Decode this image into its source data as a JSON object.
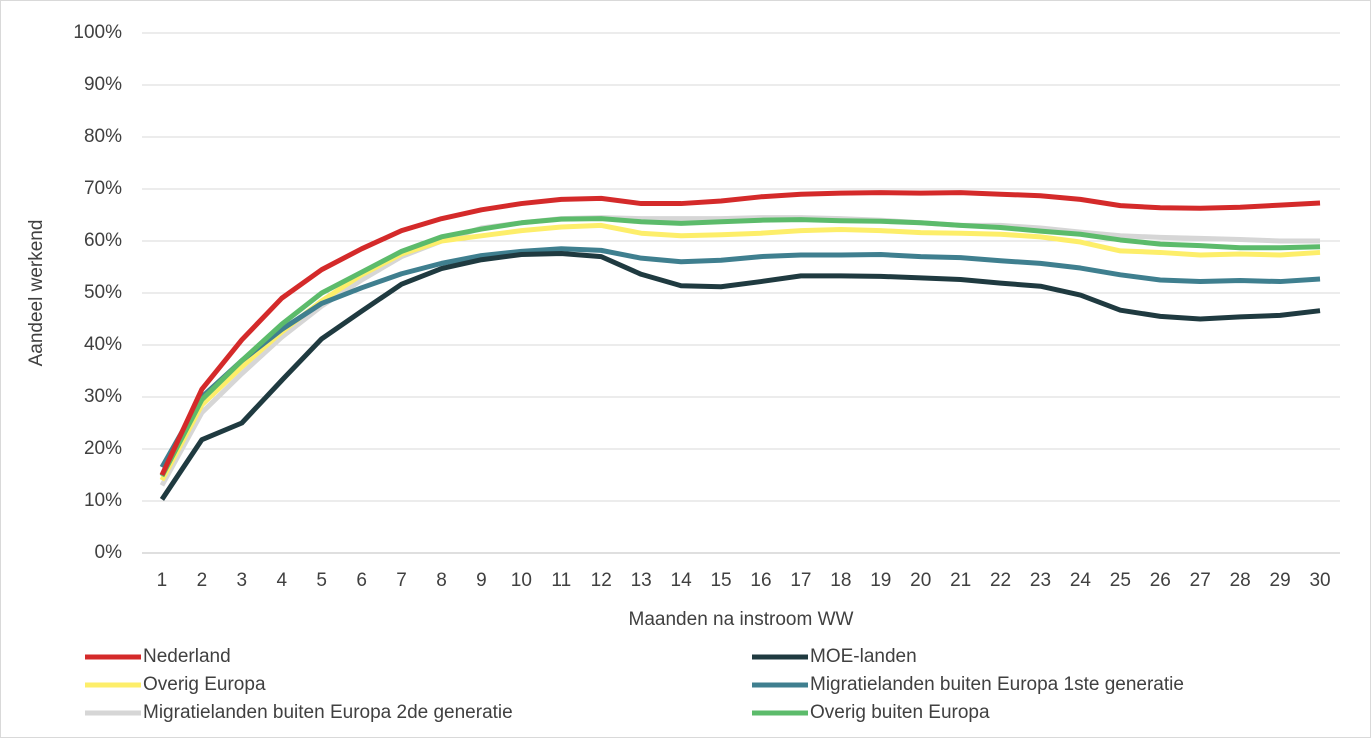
{
  "chart_data": {
    "type": "line",
    "ylabel": "Aandeel werkend",
    "xlabel": "Maanden na instroom WW",
    "categories": [
      "1",
      "2",
      "3",
      "4",
      "5",
      "6",
      "7",
      "8",
      "9",
      "10",
      "11",
      "12",
      "13",
      "14",
      "15",
      "16",
      "17",
      "18",
      "19",
      "20",
      "21",
      "22",
      "23",
      "24",
      "25",
      "26",
      "27",
      "28",
      "29",
      "30"
    ],
    "ylim": [
      0,
      100
    ],
    "yticks": [
      {
        "value": 0,
        "label": "0%"
      },
      {
        "value": 10,
        "label": "10%"
      },
      {
        "value": 20,
        "label": "20%"
      },
      {
        "value": 30,
        "label": "30%"
      },
      {
        "value": 40,
        "label": "40%"
      },
      {
        "value": 50,
        "label": "50%"
      },
      {
        "value": 60,
        "label": "60%"
      },
      {
        "value": 70,
        "label": "70%"
      },
      {
        "value": 80,
        "label": "80%"
      },
      {
        "value": 90,
        "label": "90%"
      },
      {
        "value": 100,
        "label": "100%"
      }
    ],
    "grid": true,
    "legend": "bottom",
    "series": [
      {
        "name": "Nederland",
        "color": "#d42a2a",
        "values": [
          15,
          31.5,
          41,
          49,
          54.5,
          58.5,
          62,
          64.3,
          66,
          67.2,
          68,
          68.2,
          67.2,
          67.2,
          67.7,
          68.5,
          69,
          69.2,
          69.3,
          69.2,
          69.3,
          69,
          68.7,
          68,
          66.8,
          66.4,
          66.3,
          66.5,
          66.9,
          67.3
        ]
      },
      {
        "name": "MOE-landen",
        "color": "#1f3a40",
        "values": [
          10.3,
          21.8,
          25,
          33.2,
          41.2,
          46.5,
          51.7,
          54.7,
          56.4,
          57.4,
          57.6,
          57,
          53.6,
          51.4,
          51.2,
          52.2,
          53.3,
          53.3,
          53.2,
          52.9,
          52.6,
          51.9,
          51.3,
          49.6,
          46.7,
          45.5,
          45,
          45.4,
          45.7,
          46.6
        ]
      },
      {
        "name": "Overig Europa",
        "color": "#fdee6a",
        "values": [
          14,
          28.5,
          35.8,
          42.5,
          48.5,
          53.5,
          57.5,
          60,
          61,
          62,
          62.7,
          63,
          61.5,
          61,
          61.2,
          61.5,
          62,
          62.2,
          62,
          61.6,
          61.5,
          61.3,
          60.8,
          59.8,
          58.1,
          57.8,
          57.3,
          57.5,
          57.3,
          57.8
        ]
      },
      {
        "name": "Migratielanden buiten Europa 1ste generatie",
        "color": "#3f7f8f",
        "values": [
          16.5,
          30,
          37,
          43,
          48,
          51,
          53.7,
          55.7,
          57.2,
          58,
          58.5,
          58.2,
          56.7,
          56,
          56.3,
          57,
          57.3,
          57.3,
          57.4,
          57,
          56.8,
          56.2,
          55.7,
          54.8,
          53.5,
          52.5,
          52.2,
          52.4,
          52.2,
          52.7
        ]
      },
      {
        "name": "Migratielanden buiten Europa 2de generatie",
        "color": "#d6d6d6",
        "values": [
          13,
          27,
          34.5,
          41.5,
          47.5,
          52.5,
          57,
          60,
          62.5,
          63.5,
          64.3,
          64.5,
          64.3,
          64.3,
          64.3,
          64.5,
          64.5,
          64.3,
          64,
          63.5,
          63,
          63,
          62.5,
          61.7,
          61,
          60.7,
          60.5,
          60.3,
          60,
          60
        ]
      },
      {
        "name": "Overig buiten Europa",
        "color": "#5cbb6b",
        "values": [
          14.8,
          29.5,
          37,
          44,
          50,
          54,
          58,
          60.8,
          62.3,
          63.5,
          64.2,
          64.3,
          63.7,
          63.4,
          63.7,
          64,
          64.1,
          63.9,
          63.8,
          63.5,
          63,
          62.6,
          61.9,
          61.3,
          60.2,
          59.4,
          59.1,
          58.7,
          58.7,
          58.9
        ]
      }
    ]
  }
}
